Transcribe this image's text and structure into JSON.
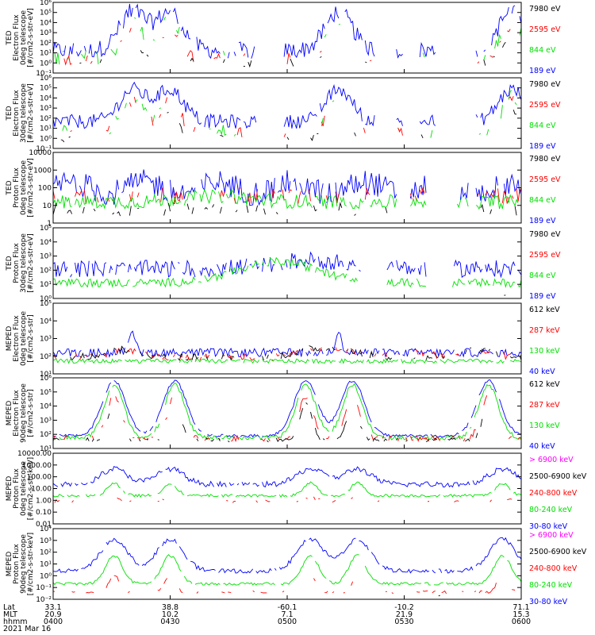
{
  "chart_data": {
    "type": "line",
    "date": "2021 Mar 16",
    "colors": {
      "black": "#000000",
      "red": "#ff0000",
      "green": "#00e000",
      "blue": "#0000ff",
      "magenta": "#ff00ff"
    },
    "panels": [
      {
        "ylabel": [
          "TED",
          "Electron Flux",
          "0deg telescope",
          "[#/cm2-s-str-eV]"
        ],
        "yticks": [
          "10⁻¹",
          "10⁰",
          "10¹",
          "10²",
          "10³",
          "10⁴",
          "10⁵",
          "10⁶"
        ],
        "legend": [
          {
            "text": "7980 eV",
            "color": "black"
          },
          {
            "text": "2595 eV",
            "color": "red"
          },
          {
            "text": "844 eV",
            "color": "green"
          },
          {
            "text": "189 eV",
            "color": "blue"
          }
        ]
      },
      {
        "ylabel": [
          "TED",
          "Electron Flux",
          "30deg telescope",
          "[#/cm2-s-str-eV]"
        ],
        "yticks": [
          "10⁻¹",
          "10⁰",
          "10¹",
          "10²",
          "10³",
          "10⁴",
          "10⁵",
          "10⁶"
        ],
        "legend": [
          {
            "text": "7980 eV",
            "color": "black"
          },
          {
            "text": "2595 eV",
            "color": "red"
          },
          {
            "text": "844 eV",
            "color": "green"
          },
          {
            "text": "189 eV",
            "color": "blue"
          }
        ]
      },
      {
        "ylabel": [
          "TED",
          "Proton Flux",
          "0deg telescope",
          "[#/cm2-s-str-eV]"
        ],
        "yticks": [
          "1",
          "10",
          "100",
          "1000",
          "10000"
        ],
        "legend": [
          {
            "text": "7980 eV",
            "color": "black"
          },
          {
            "text": "2595 eV",
            "color": "red"
          },
          {
            "text": "844 eV",
            "color": "green"
          },
          {
            "text": "189 eV",
            "color": "blue"
          }
        ]
      },
      {
        "ylabel": [
          "TED",
          "Proton Flux",
          "30deg telescope",
          "[#/cm2-s-str-eV]"
        ],
        "yticks": [
          "10⁰",
          "10¹",
          "10²",
          "10³",
          "10⁴",
          "10⁵"
        ],
        "legend": [
          {
            "text": "7980 eV",
            "color": "black"
          },
          {
            "text": "2595 eV",
            "color": "red"
          },
          {
            "text": "844 eV",
            "color": "green"
          },
          {
            "text": "189 eV",
            "color": "blue"
          }
        ]
      },
      {
        "ylabel": [
          "MEPED",
          "Electron Flux",
          "0deg telescope",
          "[#/cm2-s-str]"
        ],
        "yticks": [
          "10¹",
          "10²",
          "10³",
          "10⁴",
          "10⁵"
        ],
        "legend": [
          {
            "text": "612 keV",
            "color": "black"
          },
          {
            "text": "287 keV",
            "color": "red"
          },
          {
            "text": "130 keV",
            "color": "green"
          },
          {
            "text": "40 keV",
            "color": "blue"
          }
        ]
      },
      {
        "ylabel": [
          "MEPED",
          "Electron Flux",
          "90deg telescope",
          "[#/cm2-s-str]"
        ],
        "yticks": [
          "10¹",
          "10²",
          "10³",
          "10⁴",
          "10⁵",
          "10⁶"
        ],
        "legend": [
          {
            "text": "612 keV",
            "color": "black"
          },
          {
            "text": "287 keV",
            "color": "red"
          },
          {
            "text": "130 keV",
            "color": "green"
          },
          {
            "text": "40 keV",
            "color": "blue"
          }
        ]
      },
      {
        "ylabel": [
          "MEPED",
          "Proton Flux",
          "0deg telescope",
          "[#/cm2-s-str-keV]"
        ],
        "yticks": [
          "0.01",
          "0.10",
          "1.00",
          "10.00",
          "100.00",
          "1000.00",
          "10000.00"
        ],
        "legend": [
          {
            "text": "> 6900 keV",
            "color": "magenta"
          },
          {
            "text": "2500-6900 keV",
            "color": "black"
          },
          {
            "text": "240-800 keV",
            "color": "red"
          },
          {
            "text": "80-240 keV",
            "color": "green"
          },
          {
            "text": "30-80 keV",
            "color": "blue"
          }
        ]
      },
      {
        "ylabel": [
          "MEPED",
          "Proton Flux",
          "90deg telescope",
          "[#/cm2-s-str-keV]"
        ],
        "yticks": [
          "10⁻²",
          "10⁻¹",
          "10⁰",
          "10¹",
          "10²",
          "10³",
          "10⁴"
        ],
        "legend": [
          {
            "text": "> 6900 keV",
            "color": "magenta"
          },
          {
            "text": "2500-6900 keV",
            "color": "black"
          },
          {
            "text": "240-800 keV",
            "color": "red"
          },
          {
            "text": "80-240 keV",
            "color": "green"
          },
          {
            "text": "30-80 keV",
            "color": "blue"
          }
        ]
      }
    ],
    "x_axis": {
      "row_labels": [
        "Lat",
        "MLT",
        "hhmm"
      ],
      "ticks": [
        {
          "time": "0400",
          "lat": "33.1",
          "mlt": "20.9"
        },
        {
          "time": "0430",
          "lat": "38.8",
          "mlt": "10.2"
        },
        {
          "time": "0500",
          "lat": "-60.1",
          "mlt": "7.1"
        },
        {
          "time": "0530",
          "lat": "-10.2",
          "mlt": "21.9"
        },
        {
          "time": "0600",
          "lat": "71.1",
          "mlt": "15.3"
        }
      ]
    },
    "peaks": {
      "electron_ted": [
        0.17,
        0.25,
        0.61,
        0.98
      ],
      "meped_e_90": [
        0.13,
        0.26,
        0.54,
        0.64,
        0.93
      ],
      "meped_p": [
        0.13,
        0.25,
        0.55,
        0.65,
        0.96
      ]
    }
  }
}
